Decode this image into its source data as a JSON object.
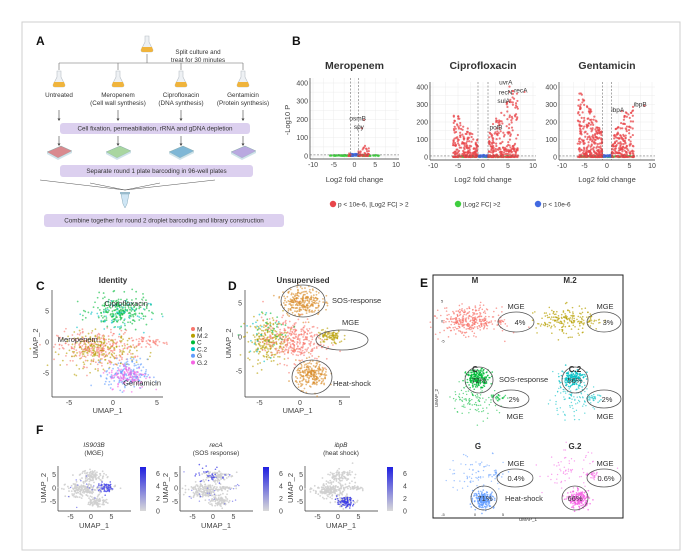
{
  "panels": {
    "A": {
      "label": "A",
      "split_text": [
        "Split culture and",
        "treat for 30 minutes"
      ],
      "conditions": [
        {
          "name": "Untreated",
          "sub": ""
        },
        {
          "name": "Meropenem",
          "sub": "(Cell wall synthesis)"
        },
        {
          "name": "Ciprofloxacin",
          "sub": "(DNA synthesis)"
        },
        {
          "name": "Gentamicin",
          "sub": "(Protein synthesis)"
        }
      ],
      "plate_colors": [
        "#d98a8f",
        "#a9d6a0",
        "#7fb7d6",
        "#b9a9e0"
      ],
      "step1": "Cell fixation, permeabiliation, rRNA and gDNA depletion",
      "step2": "Separate round 1 plate barcoding in 96-well plates",
      "step3": "Combine together for round 2 droplet barcoding and library construction",
      "box_color": "#dcd0ef"
    },
    "B": {
      "label": "B"
    },
    "C": {
      "label": "C"
    },
    "D": {
      "label": "D"
    },
    "E": {
      "label": "E"
    },
    "F": {
      "label": "F"
    }
  },
  "chart_data": [
    {
      "panel": "B",
      "type": "scatter",
      "subtype": "volcano",
      "xlabel": "Log2 fold change",
      "ylabel": "-Log10 P",
      "xlim": [
        -10,
        10
      ],
      "ylim": [
        0,
        400
      ],
      "xticks": [
        "-10",
        "-5",
        "0",
        "5",
        "10"
      ],
      "yticks": [
        "0",
        "100",
        "200",
        "300",
        "400"
      ],
      "grid": true,
      "thresholds": {
        "x": [
          -1,
          1
        ],
        "y": 6
      },
      "legend": {
        "placement": "bottom",
        "entries": [
          {
            "label": "p < 10e-6, |Log2 FC| > 2",
            "color": "#e8454a"
          },
          {
            "label": "|Log2 FC| >2",
            "color": "#3fce3f"
          },
          {
            "label": "p < 10e-6",
            "color": "#4169e1"
          }
        ]
      },
      "facets": [
        {
          "title": "Meropenem",
          "labels": [
            {
              "text": "osmB",
              "x": 3.5,
              "y": 205
            },
            {
              "text": "spy",
              "x": 3.0,
              "y": 160
            }
          ]
        },
        {
          "title": "Ciprofloxacin",
          "labels": [
            {
              "text": "uvrA",
              "x": 6.5,
              "y": 410
            },
            {
              "text": "recN",
              "x": 6.5,
              "y": 380
            },
            {
              "text": "recA",
              "x": 9.5,
              "y": 380
            },
            {
              "text": "sulA",
              "x": 6,
              "y": 320
            },
            {
              "text": "polB",
              "x": 4.5,
              "y": 170
            }
          ]
        },
        {
          "title": "Gentamicin",
          "labels": [
            {
              "text": "ibpB",
              "x": 9.5,
              "y": 300
            },
            {
              "text": "ibpA",
              "x": 4.5,
              "y": 270
            }
          ]
        }
      ]
    },
    {
      "panel": "C",
      "type": "scatter",
      "title": "Identity",
      "xlabel": "UMAP_1",
      "ylabel": "UMAP_2",
      "xticks": [
        "-5",
        "0",
        "5"
      ],
      "yticks": [
        "-5",
        "0",
        "5"
      ],
      "legend": {
        "placement": "right",
        "entries": [
          {
            "label": "M",
            "color": "#F8766D"
          },
          {
            "label": "M.2",
            "color": "#B79F00"
          },
          {
            "label": "C",
            "color": "#00BA38"
          },
          {
            "label": "C.2",
            "color": "#00BFC4"
          },
          {
            "label": "G",
            "color": "#619CFF"
          },
          {
            "label": "G.2",
            "color": "#F564E3"
          }
        ]
      },
      "annotations": [
        "Ciprofloxacin",
        "Meropenem",
        "Gentamicin"
      ]
    },
    {
      "panel": "D",
      "type": "scatter",
      "title": "Unsupervised",
      "xlabel": "UMAP_1",
      "ylabel": "UMAP_2",
      "xticks": [
        "-5",
        "0",
        "5"
      ],
      "yticks": [
        "-5",
        "0",
        "5"
      ],
      "annotations": [
        "SOS-response",
        "MGE",
        "Heat-shock"
      ]
    },
    {
      "panel": "E",
      "type": "scatter",
      "xlabel": "UMAP_1",
      "ylabel": "UMAP_2",
      "yticks": [
        "5",
        "0",
        "-5"
      ],
      "xticks": [
        "-5",
        "0",
        "5"
      ],
      "facets": [
        {
          "title": "M",
          "color": "#F8766D",
          "regions": [
            {
              "name": "MGE",
              "percent": "4%"
            }
          ]
        },
        {
          "title": "M.2",
          "color": "#B79F00",
          "regions": [
            {
              "name": "MGE",
              "percent": "3%"
            }
          ]
        },
        {
          "title": "C",
          "color": "#00BA38",
          "regions": [
            {
              "name": "SOS-response",
              "percent": "72%"
            },
            {
              "name": "MGE",
              "percent": "2%"
            }
          ]
        },
        {
          "title": "C.2",
          "color": "#00BFC4",
          "regions": [
            {
              "name": "SOS-response",
              "percent": "56%"
            },
            {
              "name": "MGE",
              "percent": "2%"
            }
          ]
        },
        {
          "title": "G",
          "color": "#619CFF",
          "regions": [
            {
              "name": "Heat-shock",
              "percent": "71%"
            },
            {
              "name": "MGE",
              "percent": "0.4%"
            }
          ]
        },
        {
          "title": "G.2",
          "color": "#F564E3",
          "regions": [
            {
              "name": "Heat-shock",
              "percent": "66%"
            },
            {
              "name": "MGE",
              "percent": "0.6%"
            }
          ]
        }
      ]
    },
    {
      "panel": "F",
      "type": "scatter",
      "subtype": "feature-plot",
      "xlabel": "UMAP_1",
      "ylabel": "UMAP_2",
      "xticks": [
        "-5",
        "0",
        "5"
      ],
      "yticks": [
        "-5",
        "0",
        "5"
      ],
      "color_low": "#d9d9d9",
      "color_high": "#1f1fe0",
      "facets": [
        {
          "gene": "IS903B",
          "subtitle": "(MGE)",
          "colorbar_ticks": [
            "0",
            "2",
            "4",
            "6"
          ]
        },
        {
          "gene": "recA",
          "subtitle": "(SOS response)",
          "colorbar_ticks": [
            "0",
            "2",
            "4",
            "6"
          ]
        },
        {
          "gene": "ibpB",
          "subtitle": "(heat shock)",
          "colorbar_ticks": [
            "0",
            "2",
            "4",
            "6"
          ]
        }
      ]
    }
  ]
}
